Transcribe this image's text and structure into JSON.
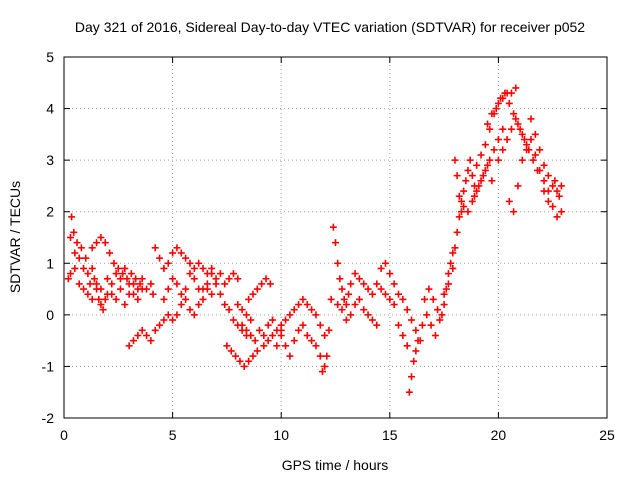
{
  "chart_data": {
    "type": "scatter",
    "title": "Day 321 of 2016, Sidereal Day-to-day VTEC variation (SDTVAR) for receiver p052",
    "xlabel": "GPS time / hours",
    "ylabel": "SDTVAR / TECUs",
    "xlim": [
      0,
      25
    ],
    "ylim": [
      -2,
      5
    ],
    "xticks": [
      "0",
      "5",
      "10",
      "15",
      "20",
      "25"
    ],
    "yticks": [
      "-2",
      "-1",
      "0",
      "1",
      "2",
      "3",
      "4",
      "5"
    ],
    "grid": true,
    "marker": "+",
    "color": "#ff0000",
    "series": [
      {
        "name": "p052",
        "points": [
          [
            0.2,
            0.7
          ],
          [
            0.3,
            1.5
          ],
          [
            0.35,
            1.9
          ],
          [
            0.45,
            1.6
          ],
          [
            0.5,
            1.2
          ],
          [
            0.6,
            1.4
          ],
          [
            0.7,
            1.1
          ],
          [
            0.8,
            1.3
          ],
          [
            0.9,
            0.9
          ],
          [
            1.0,
            1.1
          ],
          [
            1.1,
            0.8
          ],
          [
            1.2,
            0.6
          ],
          [
            1.3,
            0.9
          ],
          [
            1.4,
            0.7
          ],
          [
            1.5,
            0.5
          ],
          [
            1.6,
            0.3
          ],
          [
            1.7,
            0.2
          ],
          [
            1.8,
            0.1
          ],
          [
            1.9,
            0.3
          ],
          [
            2.0,
            0.4
          ],
          [
            0.3,
            0.8
          ],
          [
            0.5,
            0.9
          ],
          [
            0.7,
            0.6
          ],
          [
            0.9,
            0.5
          ],
          [
            1.1,
            0.4
          ],
          [
            1.3,
            0.3
          ],
          [
            1.5,
            0.6
          ],
          [
            1.7,
            0.5
          ],
          [
            2.0,
            0.7
          ],
          [
            2.2,
            0.4
          ],
          [
            2.4,
            0.3
          ],
          [
            2.6,
            0.5
          ],
          [
            2.8,
            0.2
          ],
          [
            3.0,
            0.4
          ],
          [
            3.2,
            0.6
          ],
          [
            3.4,
            0.5
          ],
          [
            3.6,
            0.7
          ],
          [
            3.8,
            0.5
          ],
          [
            4.0,
            0.6
          ],
          [
            4.1,
            0.4
          ],
          [
            1.3,
            1.3
          ],
          [
            1.5,
            1.4
          ],
          [
            1.7,
            1.5
          ],
          [
            1.9,
            1.4
          ],
          [
            2.1,
            1.2
          ],
          [
            2.3,
            1.0
          ],
          [
            2.5,
            0.9
          ],
          [
            2.7,
            0.8
          ],
          [
            2.9,
            0.7
          ],
          [
            3.1,
            0.8
          ],
          [
            3.3,
            0.7
          ],
          [
            3.5,
            0.6
          ],
          [
            2.2,
            0.6
          ],
          [
            2.4,
            0.8
          ],
          [
            2.6,
            0.7
          ],
          [
            2.8,
            0.9
          ],
          [
            3.0,
            0.6
          ],
          [
            3.2,
            0.4
          ],
          [
            3.4,
            0.3
          ],
          [
            3.6,
            0.5
          ],
          [
            3.0,
            -0.6
          ],
          [
            3.2,
            -0.5
          ],
          [
            3.4,
            -0.4
          ],
          [
            3.6,
            -0.3
          ],
          [
            3.8,
            -0.4
          ],
          [
            4.0,
            -0.5
          ],
          [
            4.2,
            -0.3
          ],
          [
            4.4,
            -0.2
          ],
          [
            4.6,
            -0.1
          ],
          [
            4.8,
            0.0
          ],
          [
            4.2,
            1.3
          ],
          [
            4.4,
            1.1
          ],
          [
            4.6,
            0.9
          ],
          [
            4.8,
            1.0
          ],
          [
            5.0,
            1.2
          ],
          [
            5.2,
            1.3
          ],
          [
            5.4,
            1.2
          ],
          [
            5.6,
            1.1
          ],
          [
            5.8,
            1.0
          ],
          [
            6.0,
            0.9
          ],
          [
            6.2,
            1.0
          ],
          [
            6.4,
            0.9
          ],
          [
            6.6,
            0.8
          ],
          [
            6.8,
            0.9
          ],
          [
            7.0,
            0.7
          ],
          [
            7.2,
            0.8
          ],
          [
            7.4,
            0.6
          ],
          [
            7.6,
            0.7
          ],
          [
            7.8,
            0.8
          ],
          [
            8.0,
            0.7
          ],
          [
            4.6,
            0.3
          ],
          [
            4.8,
            0.5
          ],
          [
            5.0,
            0.7
          ],
          [
            5.2,
            0.6
          ],
          [
            5.4,
            0.4
          ],
          [
            5.6,
            0.5
          ],
          [
            5.8,
            0.8
          ],
          [
            6.0,
            0.7
          ],
          [
            6.2,
            0.5
          ],
          [
            6.4,
            0.3
          ],
          [
            6.6,
            0.5
          ],
          [
            6.8,
            0.8
          ],
          [
            7.0,
            0.6
          ],
          [
            7.2,
            0.4
          ],
          [
            7.4,
            0.2
          ],
          [
            7.6,
            0.1
          ],
          [
            7.8,
            -0.1
          ],
          [
            8.0,
            -0.2
          ],
          [
            8.2,
            -0.3
          ],
          [
            8.4,
            -0.4
          ],
          [
            5.0,
            -0.1
          ],
          [
            5.2,
            0.0
          ],
          [
            5.4,
            0.2
          ],
          [
            5.6,
            0.3
          ],
          [
            5.8,
            0.1
          ],
          [
            6.0,
            0.0
          ],
          [
            6.2,
            0.2
          ],
          [
            6.4,
            0.5
          ],
          [
            6.6,
            0.6
          ],
          [
            6.8,
            0.4
          ],
          [
            7.5,
            -0.6
          ],
          [
            7.7,
            -0.7
          ],
          [
            7.9,
            -0.8
          ],
          [
            8.1,
            -0.9
          ],
          [
            8.3,
            -1.0
          ],
          [
            8.5,
            -0.9
          ],
          [
            8.7,
            -0.8
          ],
          [
            8.9,
            -0.7
          ],
          [
            8.2,
            -0.2
          ],
          [
            8.4,
            -0.3
          ],
          [
            8.6,
            -0.4
          ],
          [
            8.8,
            -0.5
          ],
          [
            9.0,
            -0.3
          ],
          [
            9.2,
            -0.4
          ],
          [
            9.4,
            -0.2
          ],
          [
            9.6,
            -0.1
          ],
          [
            9.8,
            -0.3
          ],
          [
            10.0,
            -0.2
          ],
          [
            8.5,
            0.3
          ],
          [
            8.7,
            0.4
          ],
          [
            8.9,
            0.5
          ],
          [
            9.1,
            0.6
          ],
          [
            9.3,
            0.7
          ],
          [
            9.5,
            0.6
          ],
          [
            8.0,
            0.2
          ],
          [
            8.2,
            0.1
          ],
          [
            8.4,
            0.0
          ],
          [
            8.6,
            -0.1
          ],
          [
            10.0,
            -0.4
          ],
          [
            10.2,
            -0.6
          ],
          [
            10.4,
            -0.8
          ],
          [
            10.6,
            -0.5
          ],
          [
            10.8,
            -0.3
          ],
          [
            11.0,
            -0.2
          ],
          [
            11.2,
            -0.4
          ],
          [
            11.4,
            -0.5
          ],
          [
            11.6,
            -0.6
          ],
          [
            11.8,
            -0.8
          ],
          [
            9.2,
            -0.6
          ],
          [
            9.4,
            -0.5
          ],
          [
            9.6,
            -0.4
          ],
          [
            9.8,
            -0.6
          ],
          [
            10.0,
            -0.3
          ],
          [
            10.2,
            -0.1
          ],
          [
            10.4,
            0.0
          ],
          [
            10.6,
            0.1
          ],
          [
            10.8,
            0.2
          ],
          [
            11.0,
            0.3
          ],
          [
            11.2,
            0.2
          ],
          [
            11.4,
            0.1
          ],
          [
            11.6,
            0.0
          ],
          [
            11.8,
            -0.2
          ],
          [
            12.0,
            -0.4
          ],
          [
            12.0,
            -1.0
          ],
          [
            11.9,
            -1.1
          ],
          [
            12.1,
            -0.8
          ],
          [
            12.2,
            -0.3
          ],
          [
            12.3,
            0.3
          ],
          [
            12.4,
            1.7
          ],
          [
            12.5,
            1.4
          ],
          [
            12.6,
            1.0
          ],
          [
            12.7,
            0.7
          ],
          [
            12.8,
            0.5
          ],
          [
            12.9,
            0.3
          ],
          [
            13.0,
            0.2
          ],
          [
            13.1,
            0.4
          ],
          [
            13.2,
            0.6
          ],
          [
            12.6,
            0.2
          ],
          [
            12.8,
            0.1
          ],
          [
            13.0,
            -0.1
          ],
          [
            13.2,
            0.0
          ],
          [
            13.4,
            0.2
          ],
          [
            13.6,
            0.3
          ],
          [
            13.8,
            0.1
          ],
          [
            14.0,
            0.0
          ],
          [
            14.2,
            -0.1
          ],
          [
            14.4,
            -0.2
          ],
          [
            13.4,
            0.8
          ],
          [
            13.6,
            0.7
          ],
          [
            13.8,
            0.6
          ],
          [
            14.0,
            0.5
          ],
          [
            14.2,
            0.4
          ],
          [
            14.4,
            0.6
          ],
          [
            14.6,
            0.5
          ],
          [
            14.8,
            0.4
          ],
          [
            15.0,
            0.3
          ],
          [
            15.2,
            0.2
          ],
          [
            14.6,
            0.9
          ],
          [
            14.8,
            1.0
          ],
          [
            15.0,
            0.8
          ],
          [
            15.2,
            0.6
          ],
          [
            15.4,
            0.4
          ],
          [
            15.6,
            0.3
          ],
          [
            15.8,
            0.1
          ],
          [
            16.0,
            -0.1
          ],
          [
            16.2,
            -0.3
          ],
          [
            16.4,
            -0.5
          ],
          [
            15.4,
            -0.2
          ],
          [
            15.6,
            -0.4
          ],
          [
            15.8,
            -0.6
          ],
          [
            15.9,
            -1.5
          ],
          [
            16.0,
            -1.2
          ],
          [
            16.1,
            -0.9
          ],
          [
            16.2,
            -0.7
          ],
          [
            16.3,
            -0.5
          ],
          [
            16.5,
            -0.2
          ],
          [
            16.7,
            0.0
          ],
          [
            16.6,
            0.3
          ],
          [
            16.8,
            0.5
          ],
          [
            17.0,
            0.3
          ],
          [
            17.2,
            0.1
          ],
          [
            17.4,
            0.0
          ],
          [
            17.5,
            0.2
          ],
          [
            17.6,
            0.5
          ],
          [
            17.7,
            0.8
          ],
          [
            17.8,
            1.0
          ],
          [
            17.9,
            1.2
          ],
          [
            16.9,
            -0.2
          ],
          [
            17.1,
            -0.4
          ],
          [
            17.3,
            -0.1
          ],
          [
            17.5,
            0.4
          ],
          [
            17.7,
            0.6
          ],
          [
            17.9,
            0.9
          ],
          [
            18.0,
            1.3
          ],
          [
            18.1,
            1.6
          ],
          [
            18.2,
            1.9
          ],
          [
            18.3,
            2.2
          ],
          [
            18.0,
            3.0
          ],
          [
            18.1,
            2.7
          ],
          [
            18.2,
            2.3
          ],
          [
            18.3,
            2.0
          ],
          [
            18.4,
            2.4
          ],
          [
            18.5,
            2.6
          ],
          [
            18.6,
            2.8
          ],
          [
            18.7,
            3.0
          ],
          [
            18.8,
            2.7
          ],
          [
            18.9,
            2.5
          ],
          [
            18.4,
            2.1
          ],
          [
            18.6,
            2.0
          ],
          [
            18.8,
            2.2
          ],
          [
            19.0,
            2.4
          ],
          [
            19.2,
            2.6
          ],
          [
            19.4,
            2.8
          ],
          [
            19.6,
            3.0
          ],
          [
            19.8,
            3.2
          ],
          [
            20.0,
            3.4
          ],
          [
            20.2,
            3.6
          ],
          [
            19.0,
            2.9
          ],
          [
            19.2,
            3.1
          ],
          [
            19.4,
            3.3
          ],
          [
            19.6,
            3.6
          ],
          [
            19.8,
            3.9
          ],
          [
            20.0,
            4.1
          ],
          [
            20.2,
            4.2
          ],
          [
            20.4,
            4.3
          ],
          [
            20.6,
            4.3
          ],
          [
            20.8,
            4.4
          ],
          [
            19.5,
            3.7
          ],
          [
            19.7,
            3.9
          ],
          [
            19.9,
            4.0
          ],
          [
            20.1,
            4.2
          ],
          [
            20.3,
            4.3
          ],
          [
            20.5,
            4.1
          ],
          [
            20.7,
            3.9
          ],
          [
            20.9,
            3.7
          ],
          [
            21.1,
            3.5
          ],
          [
            21.3,
            3.3
          ],
          [
            20.0,
            3.0
          ],
          [
            20.2,
            3.2
          ],
          [
            20.4,
            3.4
          ],
          [
            20.6,
            3.6
          ],
          [
            20.8,
            3.8
          ],
          [
            21.0,
            3.6
          ],
          [
            21.2,
            3.4
          ],
          [
            21.4,
            3.2
          ],
          [
            21.6,
            3.0
          ],
          [
            21.8,
            2.8
          ],
          [
            20.5,
            2.2
          ],
          [
            20.7,
            2.0
          ],
          [
            20.9,
            2.5
          ],
          [
            21.1,
            3.0
          ],
          [
            21.3,
            3.2
          ],
          [
            21.5,
            3.4
          ],
          [
            21.7,
            3.1
          ],
          [
            21.9,
            2.8
          ],
          [
            22.1,
            2.6
          ],
          [
            22.3,
            2.4
          ],
          [
            21.5,
            3.8
          ],
          [
            21.7,
            3.5
          ],
          [
            21.9,
            3.2
          ],
          [
            22.1,
            2.9
          ],
          [
            22.3,
            2.7
          ],
          [
            22.5,
            2.5
          ],
          [
            22.7,
            2.4
          ],
          [
            22.9,
            2.5
          ],
          [
            22.9,
            2.0
          ],
          [
            22.7,
            1.9
          ],
          [
            22.5,
            2.1
          ],
          [
            22.3,
            2.2
          ],
          [
            22.1,
            2.4
          ],
          [
            22.6,
            2.6
          ],
          [
            22.8,
            2.3
          ],
          [
            18.9,
            2.3
          ],
          [
            19.1,
            2.5
          ],
          [
            19.3,
            2.7
          ],
          [
            19.5,
            2.9
          ],
          [
            19.7,
            2.6
          ]
        ]
      }
    ]
  }
}
